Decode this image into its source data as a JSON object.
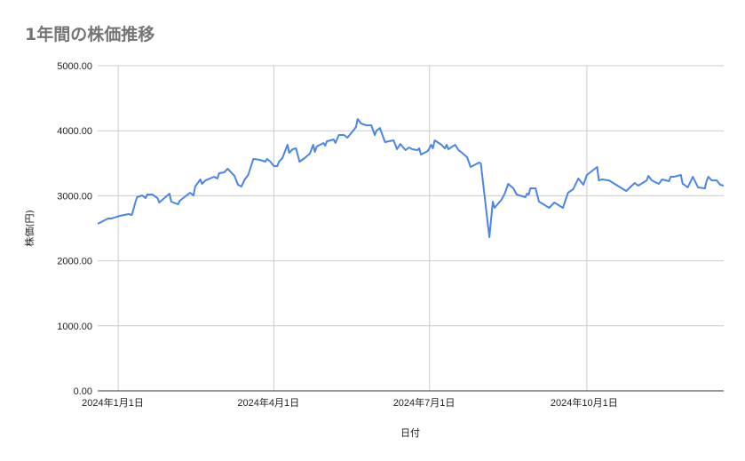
{
  "chart_data": {
    "type": "line",
    "title": "1年間の株価推移",
    "xlabel": "日付",
    "ylabel": "株価(円)",
    "ylim": [
      0,
      5000
    ],
    "xlim": [
      "2023-12-20",
      "2024-12-20"
    ],
    "y_ticks": [
      "0.00",
      "1000.00",
      "2000.00",
      "3000.00",
      "4000.00",
      "5000.00"
    ],
    "x_ticks": [
      {
        "date": "2024-01-01",
        "label": "2024年1月1日"
      },
      {
        "date": "2024-04-01",
        "label": "2024年4月1日"
      },
      {
        "date": "2024-07-01",
        "label": "2024年7月1日"
      },
      {
        "date": "2024-10-01",
        "label": "2024年10月1日"
      }
    ],
    "grid": true,
    "line_color": "#4a86e8",
    "series": [
      {
        "x": [
          "2023-12-20",
          "2023-12-22",
          "2023-12-26",
          "2023-12-28",
          "2024-01-02",
          "2024-01-07",
          "2024-01-09",
          "2024-01-11",
          "2024-01-12",
          "2024-01-15",
          "2024-01-17",
          "2024-01-18",
          "2024-01-21",
          "2024-01-24",
          "2024-01-25",
          "2024-01-31",
          "2024-02-01",
          "2024-02-05",
          "2024-02-06",
          "2024-02-12",
          "2024-02-14",
          "2024-02-15",
          "2024-02-18",
          "2024-02-19",
          "2024-02-21",
          "2024-02-26",
          "2024-02-28",
          "2024-02-29",
          "2024-03-03",
          "2024-03-05",
          "2024-03-09",
          "2024-03-11",
          "2024-03-13",
          "2024-03-15",
          "2024-03-17",
          "2024-03-20",
          "2024-03-24",
          "2024-03-27",
          "2024-03-28",
          "2024-03-30",
          "2024-04-01",
          "2024-04-03",
          "2024-04-04",
          "2024-04-06",
          "2024-04-09",
          "2024-04-10",
          "2024-04-12",
          "2024-04-14",
          "2024-04-16",
          "2024-04-19",
          "2024-04-22",
          "2024-04-24",
          "2024-04-25",
          "2024-04-26",
          "2024-04-30",
          "2024-05-01",
          "2024-05-02",
          "2024-05-06",
          "2024-05-07",
          "2024-05-09",
          "2024-05-12",
          "2024-05-14",
          "2024-05-17",
          "2024-05-19",
          "2024-05-20",
          "2024-05-22",
          "2024-05-25",
          "2024-05-28",
          "2024-05-30",
          "2024-05-31",
          "2024-06-02",
          "2024-06-05",
          "2024-06-07",
          "2024-06-10",
          "2024-06-12",
          "2024-06-14",
          "2024-06-17",
          "2024-06-19",
          "2024-06-21",
          "2024-06-24",
          "2024-06-25",
          "2024-06-26",
          "2024-06-30",
          "2024-07-02",
          "2024-07-03",
          "2024-07-04",
          "2024-07-08",
          "2024-07-10",
          "2024-07-11",
          "2024-07-12",
          "2024-07-16",
          "2024-07-18",
          "2024-07-20",
          "2024-07-23",
          "2024-07-25",
          "2024-07-28",
          "2024-07-30",
          "2024-07-31",
          "2024-08-02",
          "2024-08-05",
          "2024-08-07",
          "2024-08-08",
          "2024-08-12",
          "2024-08-14",
          "2024-08-16",
          "2024-08-19",
          "2024-08-21",
          "2024-08-26",
          "2024-08-27",
          "2024-08-28",
          "2024-08-29",
          "2024-09-01",
          "2024-09-03",
          "2024-09-09",
          "2024-09-12",
          "2024-09-17",
          "2024-09-20",
          "2024-09-23",
          "2024-09-26",
          "2024-09-29",
          "2024-10-01",
          "2024-10-07",
          "2024-10-08",
          "2024-10-10",
          "2024-10-14",
          "2024-10-24",
          "2024-10-29",
          "2024-10-31",
          "2024-11-05",
          "2024-11-06",
          "2024-11-08",
          "2024-11-12",
          "2024-11-14",
          "2024-11-18",
          "2024-11-19",
          "2024-11-21",
          "2024-11-25",
          "2024-11-26",
          "2024-11-27",
          "2024-11-29",
          "2024-12-02",
          "2024-12-05",
          "2024-12-09",
          "2024-12-10",
          "2024-12-11",
          "2024-12-13",
          "2024-12-16",
          "2024-12-18",
          "2024-12-20"
        ],
        "y": [
          2568,
          2595,
          2650,
          2650,
          2691,
          2718,
          2705,
          2896,
          2978,
          3005,
          2964,
          3019,
          3019,
          2964,
          2896,
          3033,
          2910,
          2869,
          2923,
          3046,
          3005,
          3142,
          3251,
          3183,
          3237,
          3292,
          3265,
          3347,
          3360,
          3415,
          3306,
          3169,
          3142,
          3251,
          3319,
          3565,
          3552,
          3524,
          3565,
          3524,
          3456,
          3456,
          3524,
          3579,
          3784,
          3661,
          3716,
          3729,
          3524,
          3579,
          3647,
          3784,
          3675,
          3757,
          3811,
          3770,
          3838,
          3866,
          3811,
          3934,
          3934,
          3893,
          3989,
          4057,
          4180,
          4112,
          4084,
          4084,
          3934,
          4002,
          4043,
          3825,
          3838,
          3852,
          3716,
          3797,
          3702,
          3743,
          3716,
          3702,
          3729,
          3634,
          3688,
          3784,
          3729,
          3852,
          3784,
          3729,
          3784,
          3716,
          3784,
          3702,
          3661,
          3593,
          3442,
          3483,
          3511,
          3497,
          3046,
          2363,
          2910,
          2814,
          2937,
          3033,
          3183,
          3115,
          3019,
          2978,
          3033,
          3019,
          3115,
          3115,
          2910,
          2814,
          2896,
          2814,
          3046,
          3101,
          3265,
          3169,
          3319,
          3442,
          3237,
          3251,
          3237,
          3074,
          3197,
          3156,
          3237,
          3306,
          3237,
          3183,
          3251,
          3224,
          3292,
          3292,
          3319,
          3183,
          3169,
          3128,
          3292,
          3128,
          3115,
          3224,
          3292,
          3237,
          3237,
          3169,
          3156
        ]
      }
    ]
  }
}
